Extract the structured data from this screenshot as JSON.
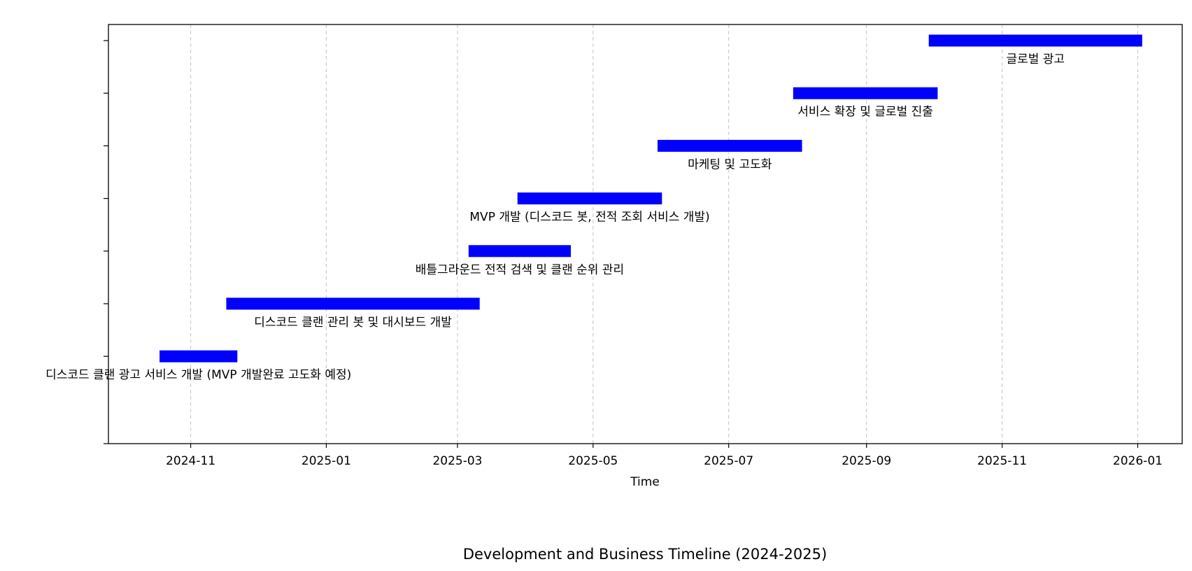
{
  "chart_data": {
    "type": "bar",
    "orientation": "horizontal-gantt",
    "title": "Development and Business Timeline (2024-2025)",
    "xlabel": "Time",
    "ylabel": "",
    "x_axis_type": "date",
    "xlim": [
      "2024-09-25",
      "2026-01-21"
    ],
    "x_ticks": [
      "2024-11-01",
      "2025-01-01",
      "2025-03-01",
      "2025-05-01",
      "2025-07-01",
      "2025-09-01",
      "2025-11-01",
      "2026-01-01"
    ],
    "x_tick_labels": [
      "2024-11",
      "2025-01",
      "2025-03",
      "2025-05",
      "2025-07",
      "2025-09",
      "2025-11",
      "2026-01"
    ],
    "grid": "vertical dashed",
    "y_tick_labels_visible": false,
    "bar_color": "#0000ff",
    "grid_color": "#c8c8c8",
    "tasks": [
      {
        "label": "디스코드 클랜 광고 서비스 개발 (MVP 개발완료 고도화 예정)",
        "start": "2024-10-18",
        "end": "2024-11-22"
      },
      {
        "label": "디스코드 클랜 관리 봇 및 대시보드 개발",
        "start": "2024-11-17",
        "end": "2025-03-11"
      },
      {
        "label": "배틀그라운드 전적 검색 및 클랜 순위 관리",
        "start": "2025-03-06",
        "end": "2025-04-21"
      },
      {
        "label": "MVP 개발 (디스코드 봇, 전적 조회 서비스 개발)",
        "start": "2025-03-28",
        "end": "2025-06-01"
      },
      {
        "label": "마케팅 및 고도화",
        "start": "2025-05-30",
        "end": "2025-08-03"
      },
      {
        "label": "서비스 확장 및 글로벌 진출",
        "start": "2025-07-30",
        "end": "2025-10-03"
      },
      {
        "label": "글로벌 광고",
        "start": "2025-09-29",
        "end": "2026-01-03"
      }
    ]
  }
}
